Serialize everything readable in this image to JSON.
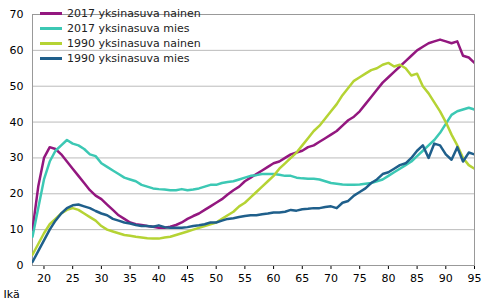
{
  "chart_data": {
    "type": "line",
    "x_label": "Ikä",
    "x": [
      18,
      19,
      20,
      21,
      22,
      23,
      24,
      25,
      26,
      27,
      28,
      29,
      30,
      31,
      32,
      33,
      34,
      35,
      36,
      37,
      38,
      39,
      40,
      41,
      42,
      43,
      44,
      45,
      46,
      47,
      48,
      49,
      50,
      51,
      52,
      53,
      54,
      55,
      56,
      57,
      58,
      59,
      60,
      61,
      62,
      63,
      64,
      65,
      66,
      67,
      68,
      69,
      70,
      71,
      72,
      73,
      74,
      75,
      76,
      77,
      78,
      79,
      80,
      81,
      82,
      83,
      84,
      85,
      86,
      87,
      88,
      89,
      90,
      91,
      92,
      93,
      94,
      95
    ],
    "xlim": [
      18,
      95
    ],
    "xticks": [
      20,
      25,
      30,
      35,
      40,
      45,
      50,
      55,
      60,
      65,
      70,
      75,
      80,
      85,
      90,
      95
    ],
    "ylim": [
      0,
      70
    ],
    "yticks": [
      0,
      10,
      20,
      30,
      40,
      50,
      60,
      70
    ],
    "grid": true,
    "legend": "top-left",
    "series": [
      {
        "name": "2017 yksinasuva nainen",
        "color": "#93177f",
        "values": [
          10,
          22,
          30,
          33,
          32.5,
          31,
          29,
          27,
          25,
          23,
          21,
          19.5,
          18.5,
          17,
          15.5,
          14,
          13,
          12,
          11.5,
          11.3,
          11,
          10.8,
          10.5,
          10.5,
          10.8,
          11.3,
          12,
          13,
          13.8,
          14.5,
          15.5,
          16.5,
          17.5,
          18.5,
          19.8,
          21,
          22,
          23.5,
          24.5,
          25.5,
          26.5,
          27.5,
          28.5,
          29,
          30,
          31,
          31.5,
          32,
          33,
          33.5,
          34.5,
          35.5,
          36.5,
          37.5,
          39,
          40.5,
          41.5,
          43,
          45,
          47,
          49,
          51,
          52.5,
          54,
          55.5,
          57,
          58.5,
          60,
          61,
          62,
          62.5,
          63,
          62.5,
          62,
          62.5,
          58.5,
          58,
          56.5
        ]
      },
      {
        "name": "2017 yksinasuva mies",
        "color": "#3cc8b4",
        "values": [
          8,
          16,
          24,
          29,
          32,
          33.5,
          35,
          34,
          33.5,
          32.5,
          31,
          30.5,
          28.5,
          27.5,
          26.5,
          25.5,
          24.5,
          24,
          23.5,
          22.5,
          22,
          21.5,
          21.3,
          21.2,
          21,
          21,
          21.3,
          21,
          21.2,
          21.5,
          22,
          22.5,
          22.5,
          23,
          23.3,
          23.5,
          24,
          24.5,
          25,
          25.2,
          25.5,
          25.5,
          25.5,
          25.3,
          25,
          25,
          24.5,
          24.3,
          24.2,
          24.2,
          24,
          23.5,
          23,
          22.8,
          22.6,
          22.5,
          22.5,
          22.6,
          22.8,
          23,
          23.5,
          24,
          25,
          26,
          27,
          28,
          29,
          30.5,
          32,
          33.5,
          35,
          37,
          39.5,
          42,
          43,
          43.5,
          44,
          43.5
        ]
      },
      {
        "name": "1990 yksinasuva nainen",
        "color": "#b5d334",
        "values": [
          3,
          6,
          9,
          11.5,
          13,
          14.5,
          15.5,
          16,
          15.5,
          14.5,
          13.5,
          12.5,
          11,
          10,
          9.5,
          9,
          8.5,
          8.3,
          8,
          7.8,
          7.6,
          7.5,
          7.5,
          7.8,
          8,
          8.5,
          9,
          9.5,
          10,
          10.5,
          11,
          11.5,
          12,
          13,
          14,
          15,
          16.5,
          17.5,
          19,
          20.5,
          22,
          23.5,
          25,
          27,
          28.5,
          30,
          31.5,
          33.5,
          35.5,
          37.5,
          39,
          41,
          43,
          45,
          47.5,
          49.5,
          51.5,
          52.5,
          53.5,
          54.5,
          55,
          56,
          56.5,
          55.5,
          56,
          55,
          53,
          53.5,
          50,
          48,
          45.5,
          43,
          40,
          36.5,
          33.5,
          30,
          28,
          27
        ]
      },
      {
        "name": "1990 yksinasuva mies",
        "color": "#1f5f8b",
        "values": [
          1,
          4,
          7,
          10,
          12.5,
          14.5,
          16,
          16.8,
          17,
          16.5,
          16,
          15.2,
          14.5,
          14,
          13,
          12.5,
          12,
          11.7,
          11.3,
          11,
          11,
          10.8,
          11.2,
          10.7,
          10.5,
          10.5,
          10.5,
          10.7,
          11,
          11.2,
          11.5,
          12,
          12,
          12.5,
          13,
          13.2,
          13.5,
          13.8,
          14,
          14,
          14.3,
          14.5,
          14.8,
          14.8,
          15,
          15.5,
          15.3,
          15.7,
          15.8,
          16,
          16,
          16.3,
          16.5,
          16,
          17.5,
          18,
          19.5,
          20.5,
          21.5,
          23,
          24,
          25.5,
          26,
          27,
          28,
          28.5,
          30,
          32,
          33.5,
          30,
          34,
          33.5,
          31,
          29.5,
          33,
          29,
          31.5,
          31
        ]
      }
    ]
  }
}
